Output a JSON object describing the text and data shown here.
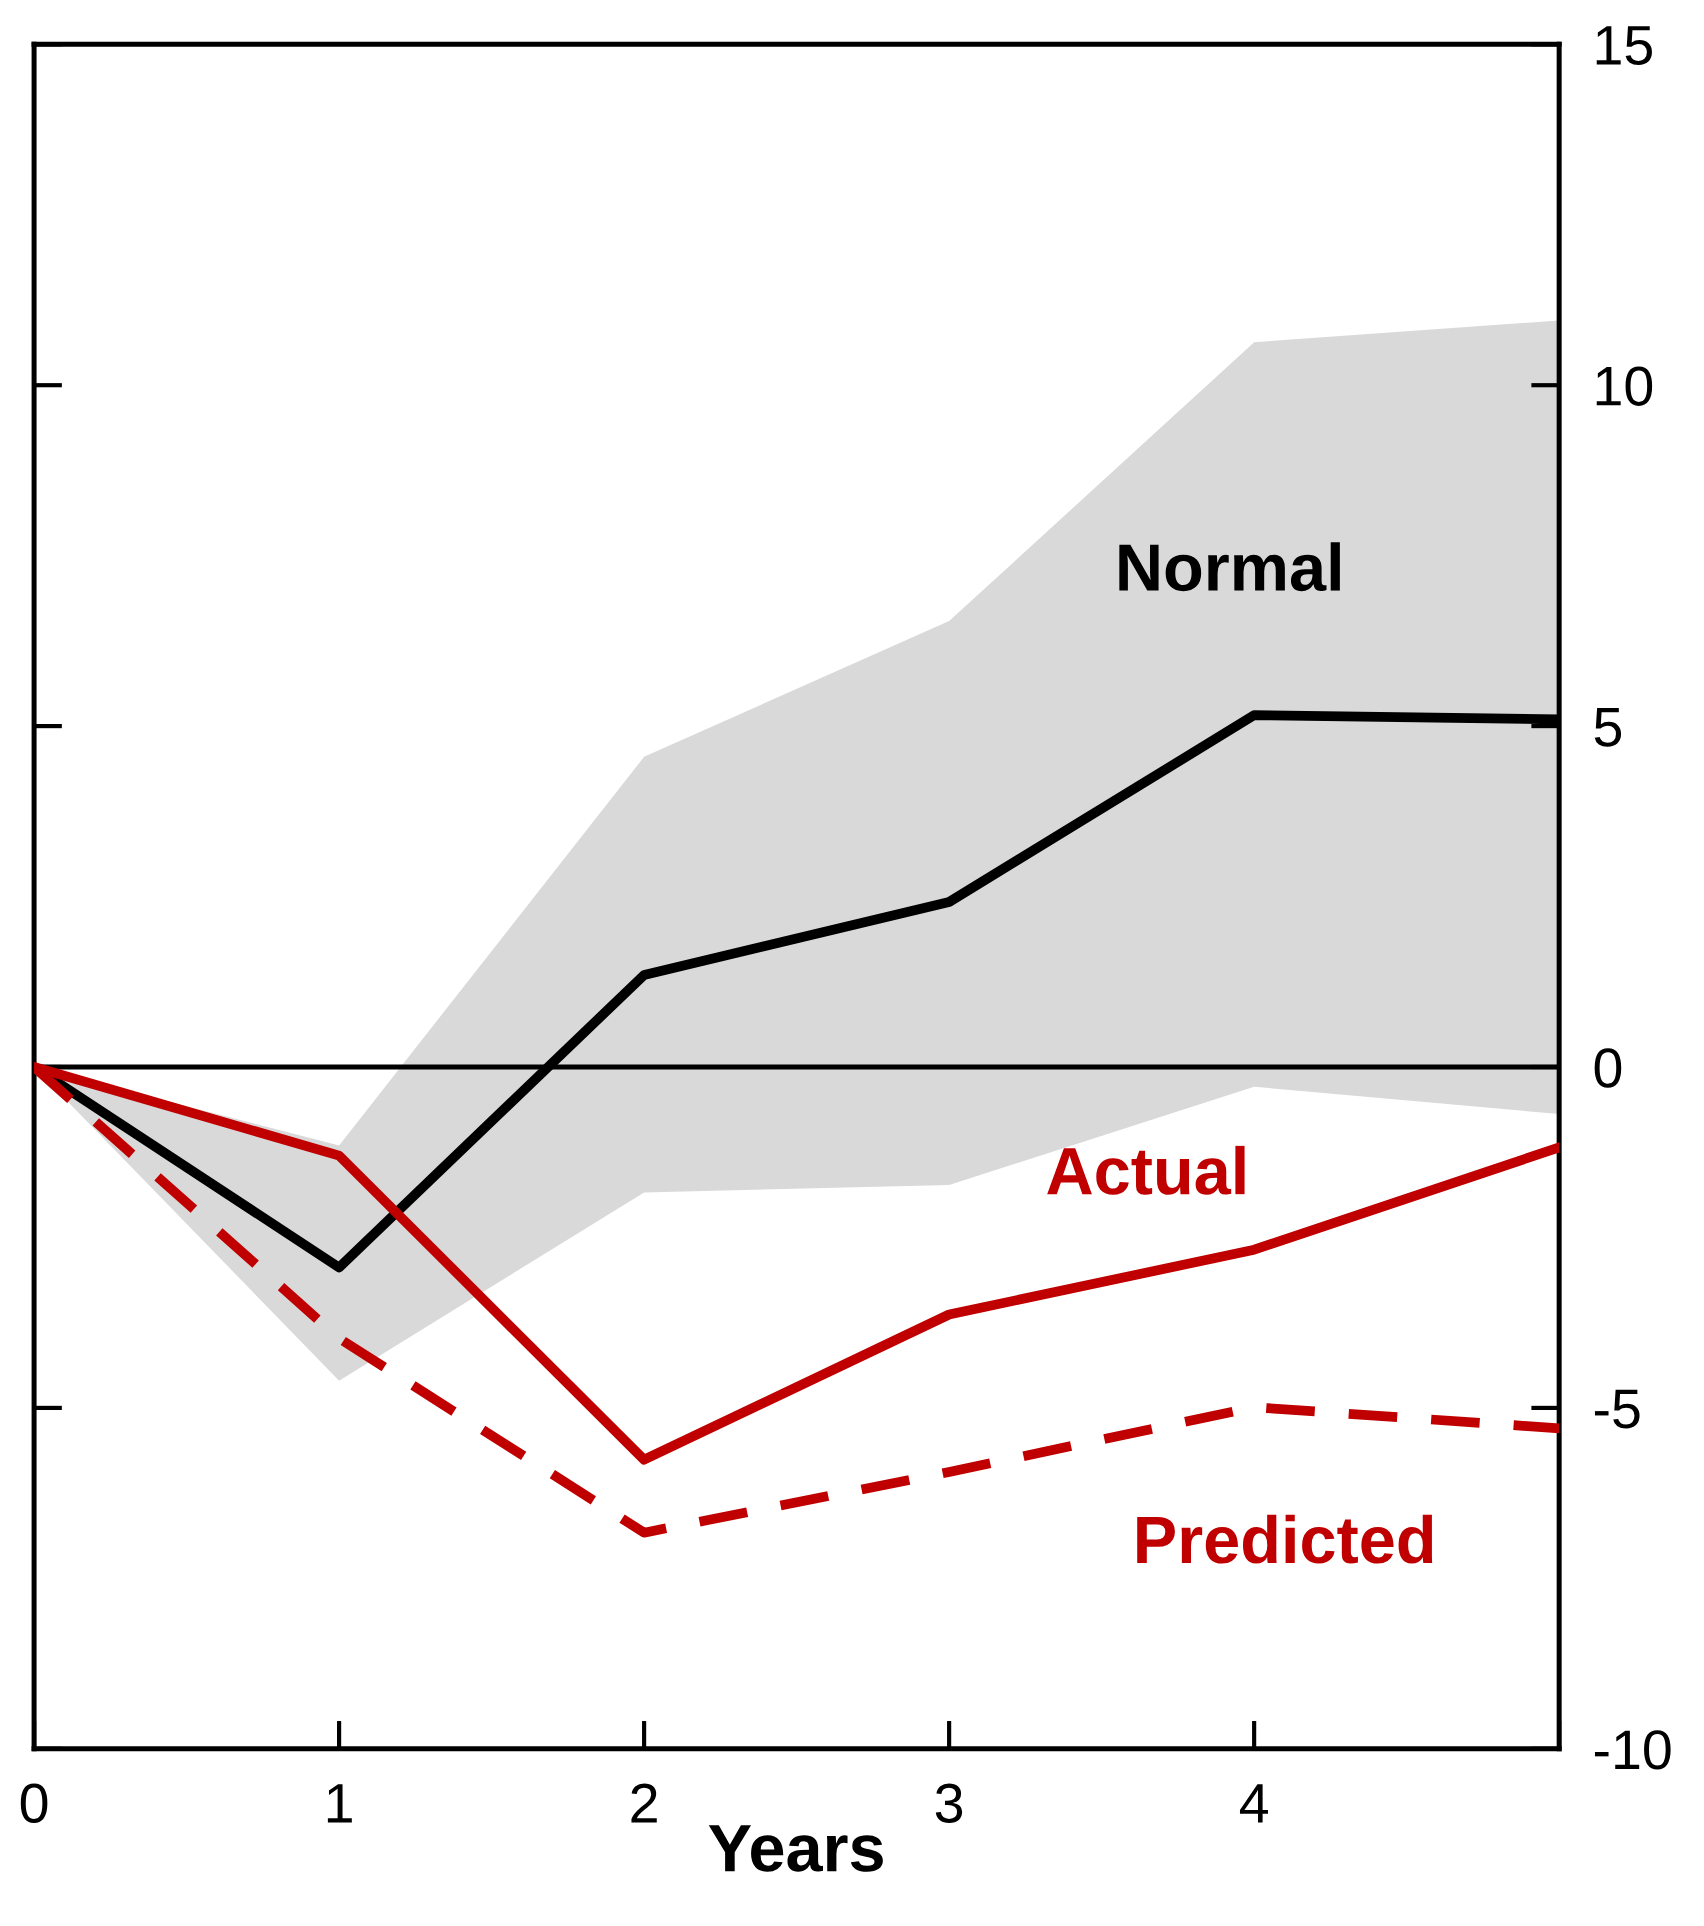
{
  "chart_data": {
    "type": "line",
    "xlabel": "Years",
    "x": [
      0,
      1,
      2,
      3,
      4,
      5
    ],
    "xlim": [
      0,
      5
    ],
    "xticks": [
      0,
      1,
      2,
      3,
      4,
      {
        "value": 5,
        "label": null
      }
    ],
    "ylim": [
      -10,
      15
    ],
    "yticks": [
      -10,
      -5,
      0,
      5,
      10,
      15
    ],
    "grid": false,
    "legend": false,
    "marker": "none",
    "series": [
      {
        "name": "Normal",
        "color": "#000000",
        "line_style": "solid",
        "values": [
          0,
          -2.94,
          1.35,
          2.42,
          5.16,
          5.1
        ],
        "lower": [
          0,
          -4.6,
          -1.84,
          -1.73,
          -0.29,
          -0.69
        ],
        "upper": [
          0,
          -1.15,
          4.55,
          6.54,
          10.63,
          10.95
        ]
      },
      {
        "name": "Actual",
        "color": "#c00000",
        "line_style": "solid",
        "values": [
          0,
          -1.3,
          -5.76,
          -3.63,
          -2.68,
          -1.18
        ]
      },
      {
        "name": "Predicted",
        "color": "#c00000",
        "line_style": "dashed",
        "values": [
          0,
          -3.98,
          -6.83,
          -5.94,
          -4.99,
          -5.3
        ]
      }
    ],
    "ref_lines": [
      {
        "axis": "y",
        "value": 0,
        "color": "#000000"
      }
    ]
  }
}
